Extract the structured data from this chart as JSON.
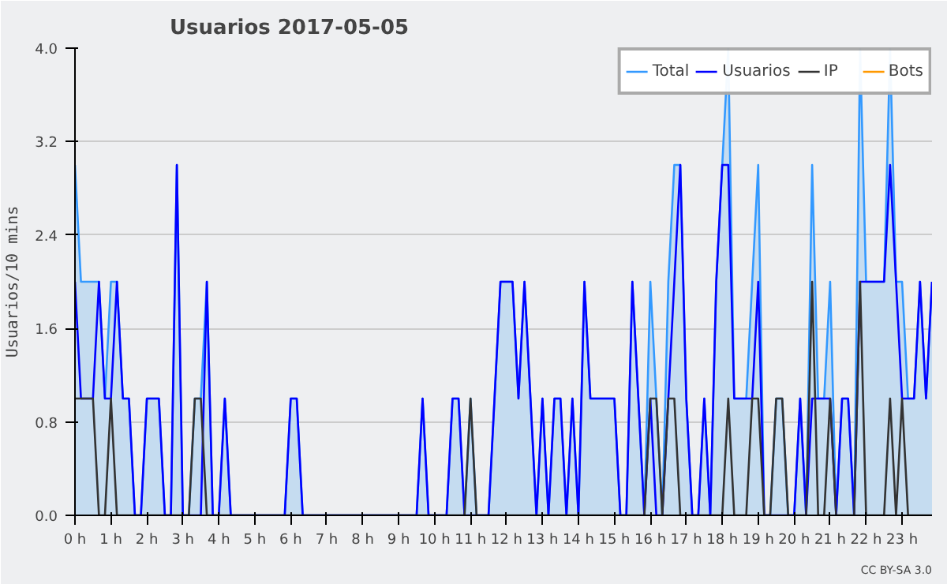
{
  "chart_data": {
    "type": "line",
    "title": "Usuarios  2017-05-05",
    "ylabel": "Usuarios/10 mins",
    "annotations": [
      "CC BY-SA 3.0"
    ],
    "x": [
      0,
      0.167,
      0.333,
      0.5,
      0.667,
      0.833,
      1,
      1.167,
      1.333,
      1.5,
      1.667,
      1.833,
      2,
      2.167,
      2.333,
      2.5,
      2.667,
      2.833,
      3,
      3.167,
      3.333,
      3.5,
      3.667,
      3.833,
      4,
      4.167,
      4.333,
      4.5,
      4.667,
      4.833,
      5,
      5.167,
      5.333,
      5.5,
      5.667,
      5.833,
      6,
      6.167,
      6.333,
      6.5,
      6.667,
      6.833,
      7,
      7.167,
      7.333,
      7.5,
      7.667,
      7.833,
      8,
      8.167,
      8.333,
      8.5,
      8.667,
      8.833,
      9,
      9.167,
      9.333,
      9.5,
      9.667,
      9.833,
      10,
      10.167,
      10.333,
      10.5,
      10.667,
      10.833,
      11,
      11.167,
      11.333,
      11.5,
      11.667,
      11.833,
      12,
      12.167,
      12.333,
      12.5,
      12.667,
      12.833,
      13,
      13.167,
      13.333,
      13.5,
      13.667,
      13.833,
      14,
      14.167,
      14.333,
      14.5,
      14.667,
      14.833,
      15,
      15.167,
      15.333,
      15.5,
      15.667,
      15.833,
      16,
      16.167,
      16.333,
      16.5,
      16.667,
      16.833,
      17,
      17.167,
      17.333,
      17.5,
      17.667,
      17.833,
      18,
      18.167,
      18.333,
      18.5,
      18.667,
      18.833,
      19,
      19.167,
      19.333,
      19.5,
      19.667,
      19.833,
      20,
      20.167,
      20.333,
      20.5,
      20.667,
      20.833,
      21,
      21.167,
      21.333,
      21.5,
      21.667,
      21.833,
      22,
      22.167,
      22.333,
      22.5,
      22.667,
      22.833,
      23,
      23.167,
      23.333,
      23.5,
      23.667,
      23.833
    ],
    "series": [
      {
        "name": "Total",
        "type": "area",
        "color": "#3399ff",
        "values": [
          3,
          2,
          2,
          2,
          2,
          1,
          2,
          2,
          1,
          1,
          0,
          0,
          1,
          1,
          1,
          0,
          0,
          3,
          0,
          0,
          1,
          1,
          2,
          0,
          0,
          1,
          0,
          0,
          0,
          0,
          0,
          0,
          0,
          0,
          0,
          0,
          1,
          1,
          0,
          0,
          0,
          0,
          0,
          0,
          0,
          0,
          0,
          0,
          0,
          0,
          0,
          0,
          0,
          0,
          0,
          0,
          0,
          0,
          1,
          0,
          0,
          0,
          0,
          1,
          1,
          0,
          1,
          0,
          0,
          0,
          1,
          2,
          2,
          2,
          1,
          2,
          1,
          0,
          1,
          0,
          1,
          1,
          0,
          1,
          0,
          2,
          1,
          1,
          1,
          1,
          1,
          0,
          0,
          2,
          1,
          0,
          2,
          1,
          0,
          2,
          3,
          3,
          1,
          0,
          0,
          1,
          0,
          2,
          3,
          4,
          1,
          1,
          1,
          2,
          3,
          0,
          0,
          1,
          1,
          0,
          0,
          1,
          0,
          3,
          1,
          1,
          2,
          0,
          1,
          1,
          0,
          4,
          2,
          2,
          2,
          2,
          4,
          2,
          2,
          1,
          1,
          2,
          1,
          2
        ]
      },
      {
        "name": "Usuarios",
        "color": "#0000ff",
        "values": [
          2,
          1,
          1,
          1,
          2,
          1,
          1,
          2,
          1,
          1,
          0,
          0,
          1,
          1,
          1,
          0,
          0,
          3,
          0,
          0,
          0,
          0,
          2,
          0,
          0,
          1,
          0,
          0,
          0,
          0,
          0,
          0,
          0,
          0,
          0,
          0,
          1,
          1,
          0,
          0,
          0,
          0,
          0,
          0,
          0,
          0,
          0,
          0,
          0,
          0,
          0,
          0,
          0,
          0,
          0,
          0,
          0,
          0,
          1,
          0,
          0,
          0,
          0,
          1,
          1,
          0,
          0,
          0,
          0,
          0,
          1,
          2,
          2,
          2,
          1,
          2,
          1,
          0,
          1,
          0,
          1,
          1,
          0,
          1,
          0,
          2,
          1,
          1,
          1,
          1,
          1,
          0,
          0,
          2,
          1,
          0,
          1,
          0,
          0,
          1,
          2,
          3,
          1,
          0,
          0,
          1,
          0,
          2,
          3,
          3,
          1,
          1,
          1,
          1,
          2,
          0,
          0,
          0,
          0,
          0,
          0,
          1,
          0,
          1,
          1,
          1,
          1,
          0,
          1,
          1,
          0,
          2,
          2,
          2,
          2,
          2,
          3,
          2,
          1,
          1,
          1,
          2,
          1,
          2
        ]
      },
      {
        "name": "IP",
        "color": "#333333",
        "values": [
          1,
          1,
          1,
          1,
          0,
          0,
          1,
          0,
          0,
          0,
          0,
          0,
          0,
          0,
          0,
          0,
          0,
          0,
          0,
          0,
          1,
          1,
          0,
          0,
          0,
          0,
          0,
          0,
          0,
          0,
          0,
          0,
          0,
          0,
          0,
          0,
          0,
          0,
          0,
          0,
          0,
          0,
          0,
          0,
          0,
          0,
          0,
          0,
          0,
          0,
          0,
          0,
          0,
          0,
          0,
          0,
          0,
          0,
          0,
          0,
          0,
          0,
          0,
          0,
          0,
          0,
          1,
          0,
          0,
          0,
          0,
          0,
          0,
          0,
          0,
          0,
          0,
          0,
          0,
          0,
          0,
          0,
          0,
          0,
          0,
          0,
          0,
          0,
          0,
          0,
          0,
          0,
          0,
          0,
          0,
          0,
          1,
          1,
          0,
          1,
          1,
          0,
          0,
          0,
          0,
          0,
          0,
          0,
          0,
          1,
          0,
          0,
          0,
          1,
          1,
          0,
          0,
          1,
          1,
          0,
          0,
          0,
          0,
          2,
          0,
          0,
          1,
          0,
          0,
          0,
          0,
          2,
          0,
          0,
          0,
          0,
          1,
          0,
          1,
          0,
          0,
          0,
          0,
          0
        ]
      },
      {
        "name": "Bots",
        "color": "#ff9900",
        "values": [
          null,
          null,
          null,
          null,
          null,
          null,
          null,
          null,
          null,
          null,
          null,
          null,
          null,
          null,
          null,
          null,
          null,
          null,
          null,
          null,
          null,
          null,
          null,
          null,
          null,
          null,
          null,
          null,
          null,
          null,
          null,
          null,
          null,
          null,
          null,
          null,
          null,
          null,
          null,
          null,
          null,
          null,
          null,
          null,
          null,
          null,
          null,
          null,
          null,
          null,
          null,
          null,
          null,
          null,
          null,
          null,
          null,
          null,
          null,
          null,
          null,
          null,
          null,
          null,
          null,
          null,
          null,
          null,
          null,
          null,
          null,
          null,
          null,
          null,
          null,
          null,
          null,
          null,
          null,
          null,
          null,
          null,
          null,
          null,
          null,
          null,
          null,
          null,
          null,
          null,
          null,
          null,
          null,
          null,
          null,
          null,
          null,
          null,
          null,
          null,
          null,
          null,
          null,
          null,
          null,
          null,
          null,
          null,
          null,
          null,
          null,
          null,
          null,
          null,
          null,
          null,
          null,
          null,
          null,
          null,
          null,
          null,
          null,
          null,
          null,
          null,
          null,
          null,
          null,
          null,
          null,
          null,
          null,
          null,
          null,
          null,
          null,
          null,
          null,
          null,
          null,
          null,
          null,
          null
        ]
      }
    ],
    "xlim": [
      0,
      23.833
    ],
    "xticks": [
      {
        "value": 0,
        "label": "0 h"
      },
      {
        "value": 1,
        "label": "1 h"
      },
      {
        "value": 2,
        "label": "2 h"
      },
      {
        "value": 3,
        "label": "3 h"
      },
      {
        "value": 4,
        "label": "4 h"
      },
      {
        "value": 5,
        "label": "5 h"
      },
      {
        "value": 6,
        "label": "6 h"
      },
      {
        "value": 7,
        "label": "7 h"
      },
      {
        "value": 8,
        "label": "8 h"
      },
      {
        "value": 9,
        "label": "9 h"
      },
      {
        "value": 10,
        "label": "10 h"
      },
      {
        "value": 11,
        "label": "11 h"
      },
      {
        "value": 12,
        "label": "12 h"
      },
      {
        "value": 13,
        "label": "13 h"
      },
      {
        "value": 14,
        "label": "14 h"
      },
      {
        "value": 15,
        "label": "15 h"
      },
      {
        "value": 16,
        "label": "16 h"
      },
      {
        "value": 17,
        "label": "17 h"
      },
      {
        "value": 18,
        "label": "18 h"
      },
      {
        "value": 19,
        "label": "19 h"
      },
      {
        "value": 20,
        "label": "20 h"
      },
      {
        "value": 21,
        "label": "21 h"
      },
      {
        "value": 22,
        "label": "22 h"
      },
      {
        "value": 23,
        "label": "23 h"
      }
    ],
    "ylim": [
      0,
      4
    ],
    "yticks": [
      {
        "value": 0,
        "label": "0.0"
      },
      {
        "value": 0.8,
        "label": "0.8"
      },
      {
        "value": 1.6,
        "label": "1.6"
      },
      {
        "value": 2.4,
        "label": "2.4"
      },
      {
        "value": 3.2,
        "label": "3.2"
      },
      {
        "value": 4,
        "label": "4.0"
      }
    ],
    "grid": "y",
    "legend": "top right"
  }
}
